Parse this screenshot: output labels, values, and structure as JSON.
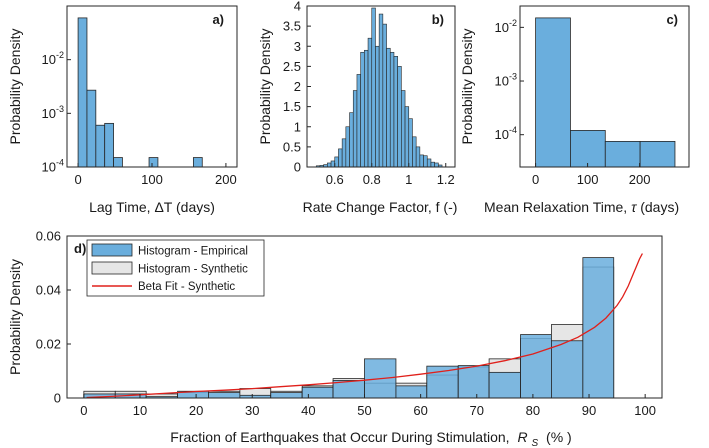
{
  "chart_data": [
    {
      "panel": "a)",
      "type": "bar",
      "scale": "log",
      "xlabel": "Lag Time, ΔT (days)",
      "ylabel": "Probability Density",
      "xlim": [
        -15,
        215
      ],
      "ylim": [
        0.0001,
        0.1
      ],
      "xticks": [
        {
          "v": 0,
          "label": "0"
        },
        {
          "v": 100,
          "label": "100"
        },
        {
          "v": 200,
          "label": "200"
        }
      ],
      "yticks": [
        {
          "v": 0.01,
          "label": "10-2",
          "base": "10",
          "exp": "-2"
        },
        {
          "v": 0.001,
          "label": "10-3",
          "base": "10",
          "exp": "-3"
        },
        {
          "v": 0.0001,
          "label": "10-4",
          "base": "10",
          "exp": "-4"
        }
      ],
      "bins": [
        {
          "x0": 0,
          "x1": 12,
          "value": 0.06
        },
        {
          "x0": 12,
          "x1": 24,
          "value": 0.0027
        },
        {
          "x0": 24,
          "x1": 36,
          "value": 0.0006
        },
        {
          "x0": 36,
          "x1": 48,
          "value": 0.00065
        },
        {
          "x0": 48,
          "x1": 60,
          "value": 0.00015
        },
        {
          "x0": 96,
          "x1": 108,
          "value": 0.00015
        },
        {
          "x0": 156,
          "x1": 168,
          "value": 0.00015
        }
      ]
    },
    {
      "panel": "b)",
      "type": "bar",
      "scale": "linear",
      "xlabel": "Rate Change Factor, f (-)",
      "ylabel": "Probability Density",
      "xlim": [
        0.45,
        1.25
      ],
      "ylim": [
        0,
        4
      ],
      "xticks": [
        {
          "v": 0.6,
          "label": "0.6"
        },
        {
          "v": 0.8,
          "label": "0.8"
        },
        {
          "v": 1,
          "label": "1"
        },
        {
          "v": 1.2,
          "label": "1.2"
        }
      ],
      "yticks": [
        {
          "v": 0,
          "label": "0"
        },
        {
          "v": 0.5,
          "label": "0.5"
        },
        {
          "v": 1,
          "label": "1"
        },
        {
          "v": 1.5,
          "label": "1.5"
        },
        {
          "v": 2,
          "label": "2"
        },
        {
          "v": 2.5,
          "label": "2.5"
        },
        {
          "v": 3,
          "label": "3"
        },
        {
          "v": 3.5,
          "label": "3.5"
        },
        {
          "v": 4,
          "label": "4"
        }
      ],
      "bin_start": 0.5,
      "bin_width": 0.02,
      "values": [
        0.03,
        0.04,
        0.06,
        0.1,
        0.15,
        0.25,
        0.45,
        0.7,
        1.0,
        1.35,
        1.9,
        2.3,
        2.85,
        2.9,
        3.2,
        3.95,
        3.0,
        3.8,
        3.55,
        2.95,
        2.85,
        2.75,
        2.5,
        1.9,
        1.5,
        1.2,
        0.75,
        0.5,
        0.3,
        0.28,
        0.2,
        0.12,
        0.1,
        0.05
      ]
    },
    {
      "panel": "c)",
      "type": "bar",
      "scale": "log",
      "xlabel": "Mean Relaxation Time, τ (days)",
      "ylabel": "Probability Density",
      "xlim": [
        -30,
        295
      ],
      "ylim": [
        2.5e-05,
        0.025
      ],
      "xticks": [
        {
          "v": 0,
          "label": "0"
        },
        {
          "v": 100,
          "label": "100"
        },
        {
          "v": 200,
          "label": "200"
        }
      ],
      "yticks": [
        {
          "v": 0.01,
          "label": "10-2",
          "base": "10",
          "exp": "-2"
        },
        {
          "v": 0.001,
          "label": "10-3",
          "base": "10",
          "exp": "-3"
        },
        {
          "v": 0.0001,
          "label": "10-4",
          "base": "10",
          "exp": "-4"
        }
      ],
      "bins": [
        {
          "x0": 0,
          "x1": 67,
          "value": 0.015
        },
        {
          "x0": 67,
          "x1": 134,
          "value": 0.00012
        },
        {
          "x0": 134,
          "x1": 201,
          "value": 7.5e-05
        },
        {
          "x0": 201,
          "x1": 268,
          "value": 7.5e-05
        }
      ]
    },
    {
      "panel": "d)",
      "type": "bar",
      "scale": "linear",
      "xlabel": "Fraction of Earthquakes that Occur During Stimulation,",
      "xlabel_symbol": "R",
      "xlabel_sub": "S",
      "xlabel_unit": "(% )",
      "ylabel": "Probability Density",
      "xlim": [
        -3,
        103
      ],
      "ylim": [
        0,
        0.06
      ],
      "xticks": [
        {
          "v": 0,
          "label": "0"
        },
        {
          "v": 10,
          "label": "10"
        },
        {
          "v": 20,
          "label": "20"
        },
        {
          "v": 30,
          "label": "30"
        },
        {
          "v": 40,
          "label": "40"
        },
        {
          "v": 50,
          "label": "50"
        },
        {
          "v": 60,
          "label": "60"
        },
        {
          "v": 70,
          "label": "70"
        },
        {
          "v": 80,
          "label": "80"
        },
        {
          "v": 90,
          "label": "90"
        },
        {
          "v": 100,
          "label": "100"
        }
      ],
      "yticks": [
        {
          "v": 0,
          "label": "0"
        },
        {
          "v": 0.02,
          "label": "0.02"
        },
        {
          "v": 0.04,
          "label": "0.04"
        },
        {
          "v": 0.06,
          "label": "0.06"
        }
      ],
      "bin_edges": [
        0,
        5.6,
        11.1,
        16.7,
        22.2,
        27.8,
        33.3,
        38.9,
        44.4,
        50,
        55.6,
        61.1,
        66.7,
        72.2,
        77.8,
        83.3,
        88.9,
        94.4,
        100
      ],
      "series": [
        {
          "name": "Histogram - Empirical",
          "color": "#6aaedd",
          "values": [
            0.0015,
            0.0015,
            0.0005,
            0.0025,
            0.002,
            0.001,
            0.002,
            0.004,
            0.0065,
            0.0145,
            0.0045,
            0.0118,
            0.012,
            0.0095,
            0.0235,
            0.0212,
            0.052,
            0.0
          ]
        },
        {
          "name": "Histogram - Synthetic",
          "color": "#e6e6e6",
          "values": [
            0.0025,
            0.0025,
            0.0015,
            0.002,
            0.0025,
            0.0035,
            0.0025,
            0.0045,
            0.0072,
            0.0055,
            0.0055,
            0.0085,
            0.0115,
            0.0145,
            0.022,
            0.0272,
            0.0485,
            0.0
          ]
        },
        {
          "name": "Beta Fit - Synthetic",
          "color": "#e0201b",
          "type": "line",
          "x": [
            0.5,
            5,
            10,
            15,
            20,
            25,
            30,
            35,
            40,
            45,
            50,
            55,
            60,
            65,
            70,
            75,
            80,
            85,
            88,
            91,
            93,
            95,
            96,
            97,
            98,
            99,
            99.5
          ],
          "y": [
            0.0002,
            0.0006,
            0.0012,
            0.0018,
            0.0024,
            0.0029,
            0.0035,
            0.0042,
            0.0049,
            0.0057,
            0.0066,
            0.0076,
            0.0088,
            0.0102,
            0.0118,
            0.0138,
            0.0163,
            0.0198,
            0.0225,
            0.0262,
            0.0296,
            0.0343,
            0.0375,
            0.0415,
            0.0465,
            0.0515,
            0.0535
          ]
        }
      ],
      "legend_position": "top-left"
    }
  ]
}
